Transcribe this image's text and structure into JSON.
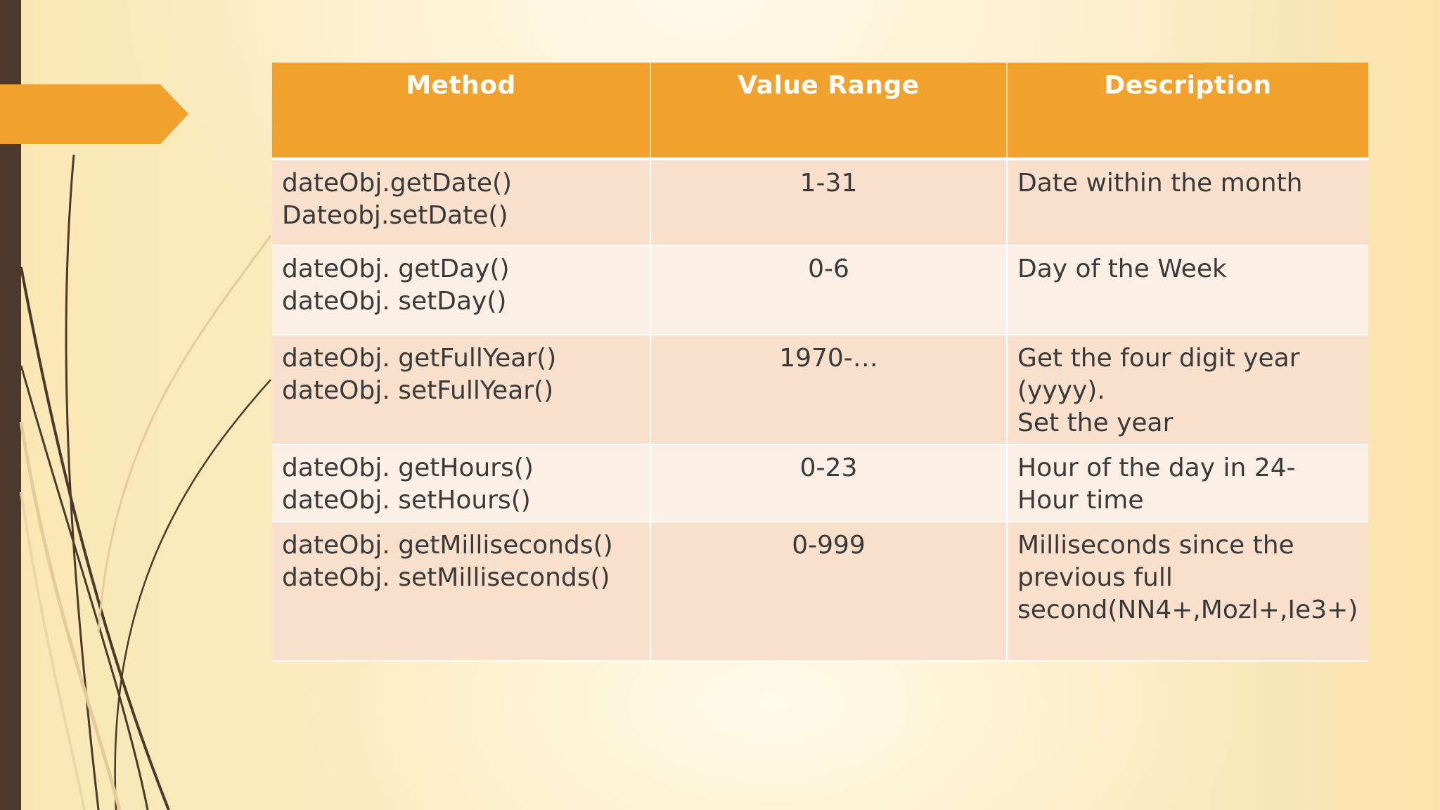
{
  "table": {
    "headers": [
      "Method",
      "Value Range",
      "Description"
    ],
    "rows": [
      {
        "method": [
          "dateObj.getDate()",
          "Dateobj.setDate()"
        ],
        "range": "1-31",
        "description": [
          "Date within the month"
        ]
      },
      {
        "method": [
          "dateObj. getDay()",
          "dateObj. setDay()"
        ],
        "range": "0-6",
        "description": [
          "Day of the Week"
        ]
      },
      {
        "method": [
          "dateObj. getFullYear()",
          "dateObj. setFullYear()"
        ],
        "range": "1970-…",
        "description": [
          "Get the four digit year",
          "(yyyy).",
          "Set the year"
        ]
      },
      {
        "method": [
          "dateObj. getHours()",
          "dateObj. setHours()"
        ],
        "range": "0-23",
        "description": [
          "Hour of the day in 24-",
          "Hour time"
        ]
      },
      {
        "method": [
          "dateObj. getMilliseconds()",
          "dateObj. setMilliseconds()"
        ],
        "range": "0-999",
        "description": [
          "Milliseconds since the",
          "previous full",
          "second(NN4+,Mozl+,Ie3+)"
        ]
      }
    ]
  },
  "colors": {
    "header_bg": "#f0a12e",
    "row_odd_bg": "#f8e0cc",
    "row_even_bg": "#fbefe6",
    "accent_bar": "#4b3a2c"
  }
}
